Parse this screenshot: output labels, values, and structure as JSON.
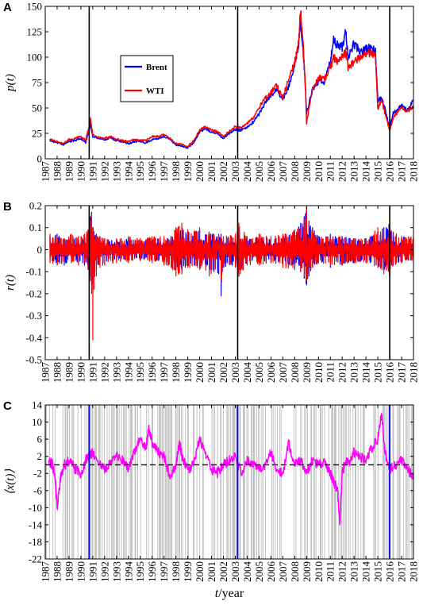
{
  "figure": {
    "xlabel_var": "t",
    "xlabel_unit": "/year"
  },
  "chart_data": [
    {
      "panel": "A",
      "type": "line",
      "ylabel": "p(t)",
      "xlim": [
        1987,
        2018
      ],
      "ylim": [
        0,
        150
      ],
      "yticks": [
        0,
        25,
        50,
        75,
        100,
        125,
        150
      ],
      "xticks": [
        1987,
        1988,
        1989,
        1990,
        1991,
        1992,
        1993,
        1994,
        1995,
        1996,
        1997,
        1998,
        1999,
        2000,
        2001,
        2002,
        2003,
        2004,
        2005,
        2006,
        2007,
        2008,
        2009,
        2010,
        2011,
        2012,
        2013,
        2014,
        2015,
        2016,
        2017,
        2018
      ],
      "vlines": [
        1990.7,
        2003.2,
        2016.0
      ],
      "legend": {
        "position": "upper-left",
        "entries": [
          "Brent",
          "WTI"
        ]
      },
      "series": [
        {
          "name": "Brent",
          "color": "#0000ff",
          "x": [
            1987.4,
            1988.0,
            1988.5,
            1989.0,
            1989.5,
            1990.0,
            1990.4,
            1990.7,
            1990.8,
            1991.0,
            1991.5,
            1992.0,
            1992.5,
            1993.0,
            1993.5,
            1994.0,
            1994.5,
            1995.0,
            1995.5,
            1996.0,
            1996.5,
            1997.0,
            1997.5,
            1998.0,
            1998.5,
            1999.0,
            1999.5,
            2000.0,
            2000.5,
            2001.0,
            2001.5,
            2002.0,
            2002.5,
            2003.0,
            2003.5,
            2004.0,
            2004.5,
            2005.0,
            2005.5,
            2006.0,
            2006.5,
            2007.0,
            2007.5,
            2008.0,
            2008.3,
            2008.5,
            2008.7,
            2008.9,
            2009.0,
            2009.5,
            2010.0,
            2010.5,
            2011.0,
            2011.3,
            2011.5,
            2012.0,
            2012.3,
            2012.5,
            2013.0,
            2013.5,
            2014.0,
            2014.5,
            2014.8,
            2015.0,
            2015.3,
            2015.6,
            2016.0,
            2016.3,
            2016.6,
            2017.0,
            2017.5,
            2018.0
          ],
          "values": [
            18,
            16,
            14,
            17,
            18,
            20,
            16,
            28,
            34,
            22,
            20,
            19,
            21,
            18,
            17,
            15,
            17,
            17,
            16,
            19,
            20,
            22,
            19,
            14,
            13,
            11,
            16,
            26,
            30,
            26,
            25,
            20,
            25,
            29,
            28,
            31,
            36,
            44,
            55,
            62,
            68,
            58,
            72,
            92,
            110,
            135,
            110,
            70,
            45,
            68,
            76,
            75,
            95,
            118,
            112,
            110,
            125,
            100,
            113,
            105,
            108,
            110,
            105,
            58,
            60,
            50,
            30,
            45,
            48,
            52,
            48,
            57
          ]
        },
        {
          "name": "WTI",
          "color": "#ff0000",
          "x": [
            1987.4,
            1988.0,
            1988.5,
            1989.0,
            1989.5,
            1990.0,
            1990.4,
            1990.7,
            1990.8,
            1991.0,
            1991.5,
            1992.0,
            1992.5,
            1993.0,
            1993.5,
            1994.0,
            1994.5,
            1995.0,
            1995.5,
            1996.0,
            1996.5,
            1997.0,
            1997.5,
            1998.0,
            1998.5,
            1999.0,
            1999.5,
            2000.0,
            2000.5,
            2001.0,
            2001.5,
            2002.0,
            2002.5,
            2003.0,
            2003.5,
            2004.0,
            2004.5,
            2005.0,
            2005.5,
            2006.0,
            2006.5,
            2007.0,
            2007.5,
            2008.0,
            2008.3,
            2008.5,
            2008.7,
            2008.9,
            2009.0,
            2009.5,
            2010.0,
            2010.5,
            2011.0,
            2011.3,
            2011.5,
            2012.0,
            2012.3,
            2012.5,
            2013.0,
            2013.5,
            2014.0,
            2014.5,
            2014.8,
            2015.0,
            2015.3,
            2015.6,
            2016.0,
            2016.3,
            2016.6,
            2017.0,
            2017.5,
            2018.0
          ],
          "values": [
            19,
            17,
            15,
            19,
            20,
            22,
            18,
            32,
            40,
            24,
            21,
            20,
            22,
            19,
            18,
            17,
            19,
            18,
            18,
            22,
            22,
            24,
            20,
            15,
            14,
            12,
            18,
            28,
            32,
            28,
            27,
            22,
            27,
            32,
            30,
            35,
            40,
            50,
            60,
            65,
            72,
            60,
            78,
            95,
            112,
            145,
            115,
            72,
            35,
            68,
            80,
            78,
            90,
            100,
            95,
            100,
            105,
            90,
            95,
            100,
            102,
            105,
            100,
            50,
            58,
            45,
            28,
            40,
            45,
            50,
            47,
            52
          ]
        }
      ]
    },
    {
      "panel": "B",
      "type": "line",
      "ylabel": "r(t)",
      "xlim": [
        1987,
        2018
      ],
      "ylim": [
        -0.5,
        0.2
      ],
      "yticks": [
        -0.5,
        -0.4,
        -0.3,
        -0.2,
        -0.1,
        0,
        0.1,
        0.2
      ],
      "ytick_labels": [
        "-0.5",
        "-0.4",
        "-0.3",
        "-0.2",
        "-0.1",
        "0",
        "0.1",
        "0.2"
      ],
      "xticks": [
        1987,
        1988,
        1989,
        1990,
        1991,
        1992,
        1993,
        1994,
        1995,
        1996,
        1997,
        1998,
        1999,
        2000,
        2001,
        2002,
        2003,
        2004,
        2005,
        2006,
        2007,
        2008,
        2009,
        2010,
        2011,
        2012,
        2013,
        2014,
        2015,
        2016,
        2017,
        2018
      ],
      "vlines": [
        1990.7,
        2003.2,
        2016.0
      ],
      "series": [
        {
          "name": "Brent",
          "color": "#0000ff",
          "x": [
            1987.4,
            1988.0,
            1988.6,
            1989.2,
            1989.8,
            1990.3,
            1990.6,
            1990.8,
            1990.9,
            1991.0,
            1991.1,
            1991.3,
            1991.6,
            1992.0,
            1993.0,
            1994.0,
            1995.0,
            1996.0,
            1997.0,
            1997.6,
            1998.0,
            1998.5,
            1999.0,
            2000.0,
            2000.8,
            2001.2,
            2001.6,
            2001.8,
            2002.0,
            2003.0,
            2003.3,
            2004.0,
            2005.0,
            2006.0,
            2007.0,
            2008.0,
            2008.5,
            2008.8,
            2009.0,
            2009.2,
            2009.5,
            2010.0,
            2011.0,
            2012.0,
            2013.0,
            2014.0,
            2015.0,
            2015.5,
            2016.0,
            2016.3,
            2017.0,
            2018.0
          ],
          "up": [
            0.06,
            0.07,
            0.05,
            0.06,
            0.05,
            0.06,
            0.08,
            0.15,
            0.17,
            0.1,
            0.08,
            0.07,
            0.06,
            0.05,
            0.04,
            0.05,
            0.04,
            0.05,
            0.05,
            0.06,
            0.07,
            0.1,
            0.08,
            0.09,
            0.08,
            0.07,
            0.06,
            0.07,
            0.05,
            0.06,
            0.1,
            0.05,
            0.06,
            0.05,
            0.06,
            0.08,
            0.12,
            0.15,
            0.19,
            0.13,
            0.1,
            0.06,
            0.07,
            0.06,
            0.05,
            0.05,
            0.08,
            0.1,
            0.1,
            0.08,
            0.06,
            0.06
          ],
          "down": [
            -0.05,
            -0.06,
            -0.07,
            -0.05,
            -0.06,
            -0.07,
            -0.08,
            -0.12,
            -0.16,
            -0.19,
            -0.13,
            -0.1,
            -0.07,
            -0.06,
            -0.05,
            -0.05,
            -0.04,
            -0.05,
            -0.06,
            -0.07,
            -0.08,
            -0.1,
            -0.07,
            -0.08,
            -0.09,
            -0.1,
            -0.11,
            -0.21,
            -0.08,
            -0.07,
            -0.12,
            -0.06,
            -0.06,
            -0.06,
            -0.07,
            -0.07,
            -0.1,
            -0.13,
            -0.16,
            -0.12,
            -0.08,
            -0.06,
            -0.08,
            -0.07,
            -0.06,
            -0.05,
            -0.08,
            -0.09,
            -0.09,
            -0.07,
            -0.06,
            -0.05
          ]
        },
        {
          "name": "WTI",
          "color": "#ff0000",
          "x": [
            1987.4,
            1988.0,
            1988.6,
            1989.2,
            1989.8,
            1990.3,
            1990.6,
            1990.8,
            1990.9,
            1991.0,
            1991.1,
            1991.3,
            1991.6,
            1992.0,
            1993.0,
            1994.0,
            1995.0,
            1996.0,
            1997.0,
            1997.6,
            1998.0,
            1998.5,
            1999.0,
            2000.0,
            2000.8,
            2001.2,
            2001.6,
            2001.8,
            2002.0,
            2003.0,
            2003.3,
            2004.0,
            2005.0,
            2006.0,
            2007.0,
            2008.0,
            2008.5,
            2008.8,
            2009.0,
            2009.2,
            2009.5,
            2010.0,
            2011.0,
            2012.0,
            2013.0,
            2014.0,
            2015.0,
            2015.5,
            2016.0,
            2016.3,
            2017.0,
            2018.0
          ],
          "up": [
            0.07,
            0.06,
            0.05,
            0.07,
            0.06,
            0.07,
            0.09,
            0.13,
            0.16,
            0.1,
            0.07,
            0.06,
            0.06,
            0.05,
            0.05,
            0.06,
            0.05,
            0.06,
            0.06,
            0.06,
            0.1,
            0.12,
            0.09,
            0.1,
            0.08,
            0.07,
            0.07,
            0.06,
            0.06,
            0.07,
            0.12,
            0.06,
            0.07,
            0.06,
            0.07,
            0.09,
            0.1,
            0.14,
            0.18,
            0.12,
            0.09,
            0.06,
            0.06,
            0.06,
            0.05,
            0.05,
            0.1,
            0.09,
            0.12,
            0.08,
            0.06,
            0.06
          ],
          "down": [
            -0.06,
            -0.07,
            -0.06,
            -0.06,
            -0.07,
            -0.06,
            -0.09,
            -0.14,
            -0.2,
            -0.41,
            -0.18,
            -0.12,
            -0.08,
            -0.07,
            -0.06,
            -0.06,
            -0.05,
            -0.06,
            -0.07,
            -0.08,
            -0.12,
            -0.11,
            -0.08,
            -0.09,
            -0.12,
            -0.1,
            -0.1,
            -0.14,
            -0.08,
            -0.08,
            -0.12,
            -0.07,
            -0.07,
            -0.06,
            -0.08,
            -0.09,
            -0.1,
            -0.12,
            -0.14,
            -0.11,
            -0.08,
            -0.06,
            -0.07,
            -0.07,
            -0.06,
            -0.06,
            -0.08,
            -0.11,
            -0.12,
            -0.07,
            -0.06,
            -0.05
          ]
        }
      ]
    },
    {
      "panel": "C",
      "type": "line",
      "ylabel": "⟨x(t)⟩",
      "xlim": [
        1987,
        2018
      ],
      "ylim": [
        -22,
        14
      ],
      "yticks": [
        -22,
        -18,
        -14,
        -10,
        -6,
        -2,
        2,
        6,
        10,
        14
      ],
      "xticks": [
        1987,
        1988,
        1989,
        1990,
        1991,
        1992,
        1993,
        1994,
        1995,
        1996,
        1997,
        1998,
        1999,
        2000,
        2001,
        2002,
        2003,
        2004,
        2005,
        2006,
        2007,
        2008,
        2009,
        2010,
        2011,
        2012,
        2013,
        2014,
        2015,
        2016,
        2017,
        2018
      ],
      "vlines": [
        1990.7,
        2003.2,
        2016.0
      ],
      "hline": 0,
      "background_bars_color": "#bdbdbd",
      "series": [
        {
          "name": "",
          "color": "#ff00ff",
          "x": [
            1987.3,
            1987.6,
            1987.8,
            1988.0,
            1988.3,
            1988.6,
            1989.0,
            1989.5,
            1990.0,
            1990.4,
            1990.7,
            1991.0,
            1991.5,
            1992.0,
            1992.5,
            1993.0,
            1993.5,
            1994.0,
            1994.5,
            1995.0,
            1995.5,
            1995.7,
            1996.0,
            1996.5,
            1997.0,
            1997.5,
            1998.0,
            1998.3,
            1998.6,
            1999.0,
            1999.5,
            2000.0,
            2000.5,
            2001.0,
            2001.5,
            2002.0,
            2002.5,
            2003.0,
            2003.5,
            2004.0,
            2004.5,
            2005.0,
            2005.5,
            2006.0,
            2006.5,
            2007.0,
            2007.5,
            2008.0,
            2008.5,
            2009.0,
            2009.5,
            2010.0,
            2010.5,
            2011.0,
            2011.3,
            2011.6,
            2011.8,
            2012.0,
            2012.3,
            2012.6,
            2013.0,
            2013.5,
            2014.0,
            2014.5,
            2015.0,
            2015.3,
            2015.6,
            2016.0,
            2016.5,
            2017.0,
            2017.5,
            2018.0
          ],
          "values": [
            1,
            0,
            -2,
            -10,
            -3,
            0,
            1,
            -1,
            -2,
            1,
            2,
            3,
            0,
            -1,
            1,
            2,
            1,
            -1,
            3,
            6,
            4,
            9,
            5,
            3,
            2,
            -3,
            0,
            5,
            1,
            -1,
            0,
            6,
            3,
            -1,
            -2,
            0,
            1,
            2,
            -2,
            1,
            0,
            -1,
            0,
            3,
            -1,
            -2,
            5,
            0,
            1,
            -2,
            1,
            0,
            1,
            -2,
            -4,
            -6,
            -14,
            -2,
            1,
            0,
            3,
            2,
            1,
            4,
            6,
            12,
            3,
            -1,
            0,
            1,
            -1,
            -3
          ]
        }
      ]
    }
  ]
}
